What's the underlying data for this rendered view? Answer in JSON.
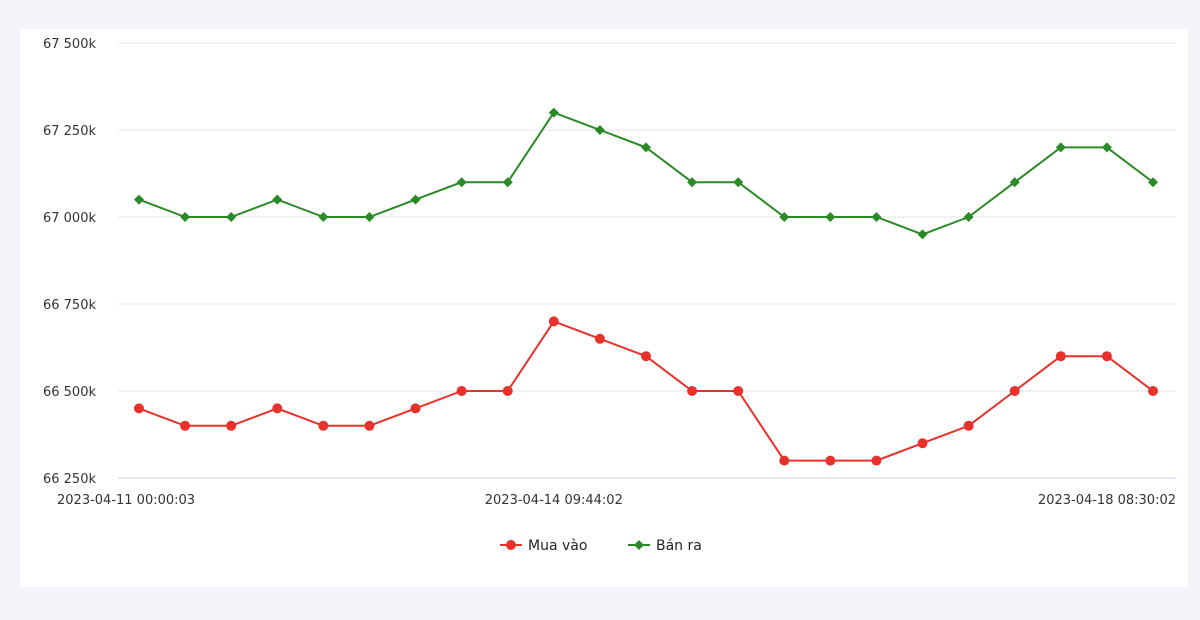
{
  "chart_data": {
    "type": "line",
    "title": "",
    "xlabel": "",
    "ylabel": "",
    "ylim": [
      66250000,
      67500000
    ],
    "y_ticks": [
      {
        "value": 67500000,
        "label": "67 500k"
      },
      {
        "value": 67250000,
        "label": "67 250k"
      },
      {
        "value": 67000000,
        "label": "67 000k"
      },
      {
        "value": 66750000,
        "label": "66 750k"
      },
      {
        "value": 66500000,
        "label": "66 500k"
      },
      {
        "value": 66250000,
        "label": "66 250k"
      }
    ],
    "x_tick_labels": [
      {
        "index": 0,
        "label": "2023-04-11 00:00:03"
      },
      {
        "index": 9,
        "label": "2023-04-14 09:44:02"
      },
      {
        "index": 22,
        "label": "2023-04-18 08:30:02"
      }
    ],
    "grid": true,
    "legend_position": "bottom-center",
    "series": [
      {
        "name": "Mua vào",
        "color": "#e8312a",
        "marker": "circle",
        "values": [
          66450000,
          66400000,
          66400000,
          66450000,
          66400000,
          66400000,
          66450000,
          66500000,
          66500000,
          66700000,
          66650000,
          66600000,
          66500000,
          66500000,
          66300000,
          66300000,
          66300000,
          66350000,
          66400000,
          66500000,
          66600000,
          66600000,
          66500000
        ]
      },
      {
        "name": "Bán ra",
        "color": "#2a8a26",
        "marker": "diamond",
        "values": [
          67050000,
          67000000,
          67000000,
          67050000,
          67000000,
          67000000,
          67050000,
          67100000,
          67100000,
          67300000,
          67250000,
          67200000,
          67100000,
          67100000,
          67000000,
          67000000,
          67000000,
          66950000,
          67000000,
          67100000,
          67200000,
          67200000,
          67100000
        ]
      }
    ]
  }
}
